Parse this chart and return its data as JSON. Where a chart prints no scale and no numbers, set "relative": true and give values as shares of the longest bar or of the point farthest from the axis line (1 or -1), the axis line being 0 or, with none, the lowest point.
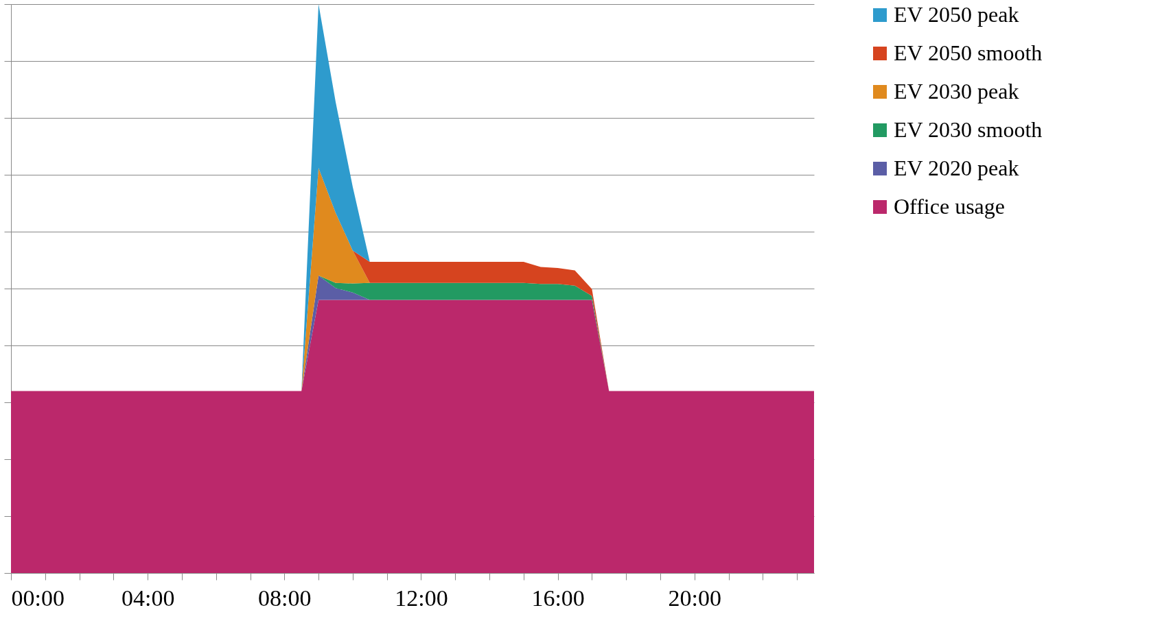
{
  "chart_data": {
    "type": "area",
    "stacked": true,
    "relative": true,
    "grid": "y",
    "legend": "right",
    "x": [
      0,
      0.5,
      1,
      1.5,
      2,
      2.5,
      3,
      3.5,
      4,
      4.5,
      5,
      5.5,
      6,
      6.5,
      7,
      7.5,
      8,
      8.5,
      9,
      9.5,
      10,
      10.5,
      11,
      11.5,
      12,
      12.5,
      13,
      13.5,
      14,
      14.5,
      15,
      15.5,
      16,
      16.5,
      17,
      17.5,
      18,
      18.5,
      19,
      19.5,
      20,
      20.5,
      21,
      21.5,
      22,
      22.5,
      23,
      23.5
    ],
    "xlim": [
      0,
      23.5
    ],
    "xticks": [
      {
        "value": 0,
        "label": "00:00"
      },
      {
        "value": 1,
        "label": null
      },
      {
        "value": 2,
        "label": null
      },
      {
        "value": 3,
        "label": null
      },
      {
        "value": 4,
        "label": "04:00"
      },
      {
        "value": 5,
        "label": null
      },
      {
        "value": 6,
        "label": null
      },
      {
        "value": 7,
        "label": null
      },
      {
        "value": 8,
        "label": "08:00"
      },
      {
        "value": 9,
        "label": null
      },
      {
        "value": 10,
        "label": null
      },
      {
        "value": 11,
        "label": null
      },
      {
        "value": 12,
        "label": "12:00"
      },
      {
        "value": 13,
        "label": null
      },
      {
        "value": 14,
        "label": null
      },
      {
        "value": 15,
        "label": null
      },
      {
        "value": 16,
        "label": "16:00"
      },
      {
        "value": 17,
        "label": null
      },
      {
        "value": 18,
        "label": null
      },
      {
        "value": 19,
        "label": null
      },
      {
        "value": 20,
        "label": "20:00"
      },
      {
        "value": 21,
        "label": null
      },
      {
        "value": 22,
        "label": null
      },
      {
        "value": 23,
        "label": null
      }
    ],
    "series": [
      {
        "name": "Office usage",
        "color": "#bb286b",
        "values": [
          0.32,
          0.32,
          0.32,
          0.32,
          0.32,
          0.32,
          0.32,
          0.32,
          0.32,
          0.32,
          0.32,
          0.32,
          0.32,
          0.32,
          0.32,
          0.32,
          0.32,
          0.32,
          0.48,
          0.48,
          0.48,
          0.48,
          0.48,
          0.48,
          0.48,
          0.48,
          0.48,
          0.48,
          0.48,
          0.48,
          0.48,
          0.48,
          0.48,
          0.48,
          0.48,
          0.32,
          0.32,
          0.32,
          0.32,
          0.32,
          0.32,
          0.32,
          0.32,
          0.32,
          0.32,
          0.32,
          0.32,
          0.32
        ]
      },
      {
        "name": "EV 2020 peak",
        "color": "#5b5ea6",
        "values": [
          null,
          null,
          null,
          null,
          null,
          null,
          null,
          null,
          null,
          null,
          null,
          null,
          null,
          null,
          null,
          null,
          null,
          0,
          0.043,
          0.021,
          0.013,
          0,
          null,
          null,
          null,
          null,
          null,
          null,
          null,
          null,
          null,
          null,
          null,
          null,
          null,
          null,
          null,
          null,
          null,
          null,
          null,
          null,
          null,
          null,
          null,
          null,
          null,
          null
        ]
      },
      {
        "name": "EV 2030 smooth",
        "color": "#229a62",
        "values": [
          null,
          null,
          null,
          null,
          null,
          null,
          null,
          null,
          null,
          null,
          null,
          null,
          null,
          null,
          null,
          null,
          null,
          null,
          0,
          0.009,
          0.016,
          0.03,
          0.03,
          0.03,
          0.03,
          0.03,
          0.03,
          0.03,
          0.03,
          0.03,
          0.03,
          0.028,
          0.028,
          0.025,
          0.007,
          0,
          null,
          null,
          null,
          null,
          null,
          null,
          null,
          null,
          null,
          null,
          null,
          null
        ]
      },
      {
        "name": "EV 2030 peak",
        "color": "#e08a1e",
        "values": [
          null,
          null,
          null,
          null,
          null,
          null,
          null,
          null,
          null,
          null,
          null,
          null,
          null,
          null,
          null,
          null,
          null,
          0,
          0.189,
          0.123,
          0.058,
          0,
          null,
          null,
          null,
          null,
          null,
          null,
          null,
          null,
          null,
          null,
          null,
          null,
          null,
          null,
          null,
          null,
          null,
          null,
          null,
          null,
          null,
          null,
          null,
          null,
          null,
          null
        ]
      },
      {
        "name": "EV 2050 smooth",
        "color": "#d6441f",
        "values": [
          null,
          null,
          null,
          null,
          null,
          null,
          null,
          null,
          null,
          null,
          null,
          null,
          null,
          null,
          null,
          null,
          null,
          null,
          null,
          null,
          0,
          0.037,
          0.037,
          0.037,
          0.037,
          0.037,
          0.037,
          0.037,
          0.037,
          0.037,
          0.037,
          0.03,
          0.028,
          0.027,
          0.012,
          0,
          null,
          null,
          null,
          null,
          null,
          null,
          null,
          null,
          null,
          null,
          null,
          null
        ]
      },
      {
        "name": "EV 2050 peak",
        "color": "#2e9bcd",
        "values": [
          null,
          null,
          null,
          null,
          null,
          null,
          null,
          null,
          null,
          null,
          null,
          null,
          null,
          null,
          null,
          null,
          null,
          0,
          0.288,
          0.195,
          0.112,
          0,
          null,
          null,
          null,
          null,
          null,
          null,
          null,
          null,
          null,
          null,
          null,
          null,
          null,
          null,
          null,
          null,
          null,
          null,
          null,
          null,
          null,
          null,
          null,
          null,
          null,
          null
        ]
      }
    ]
  }
}
